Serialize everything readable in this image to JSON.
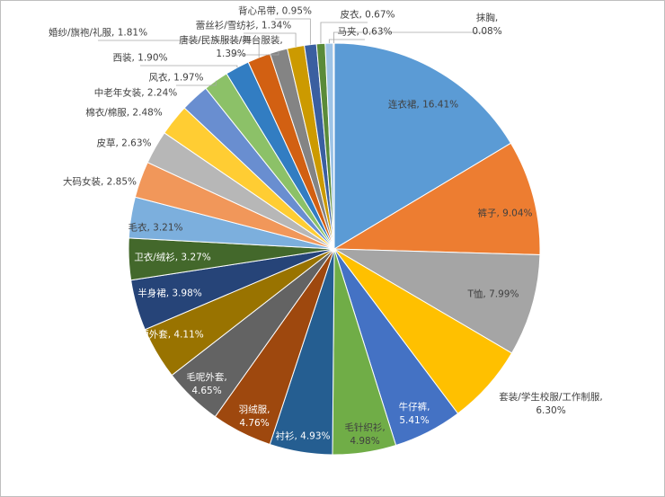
{
  "chart_data": {
    "type": "pie",
    "values": [
      16.41,
      9.04,
      7.99,
      6.3,
      5.41,
      4.98,
      4.93,
      4.76,
      4.65,
      4.11,
      3.98,
      3.27,
      3.21,
      2.85,
      2.63,
      2.48,
      2.24,
      1.97,
      1.9,
      1.81,
      1.39,
      1.34,
      0.95,
      0.67,
      0.63,
      0.08
    ],
    "value_labels": [
      "连衣裙, 16.41%",
      "裤子, 9.04%",
      "T恤, 7.99%",
      "套装/学生校服/工作制服,\n6.30%",
      "牛仔裤,\n5.41%",
      "毛针织衫,\n4.98%",
      "衬衫, 4.93%",
      "羽绒服,\n4.76%",
      "毛呢外套,\n4.65%",
      "短外套, 4.11%",
      "半身裙, 3.98%",
      "卫衣/绒衫, 3.27%",
      "毛衣, 3.21%",
      "大码女装, 2.85%",
      "皮草, 2.63%",
      "棉衣/棉服, 2.48%",
      "中老年女装, 2.24%",
      "风衣, 1.97%",
      "西装, 1.90%",
      "婚纱/旗袍/礼服, 1.81%",
      "唐装/民族服装/舞台服装,\n1.39%",
      "蕾丝衫/雪纺衫, 1.34%",
      "背心吊带, 0.95%",
      "皮衣, 0.67%",
      "马夹, 0.63%",
      "抹胸,\n0.08%"
    ],
    "colors": [
      "#5b9bd5",
      "#ed7d31",
      "#a5a5a5",
      "#ffc000",
      "#4472c4",
      "#70ad47",
      "#255e91",
      "#9e480e",
      "#636363",
      "#997300",
      "#264478",
      "#43682b",
      "#7cafdd",
      "#f1975a",
      "#b7b7b7",
      "#ffcd33",
      "#698ed0",
      "#8cc168",
      "#327dc2",
      "#d26012",
      "#848484",
      "#cc9a00",
      "#3a5fa0",
      "#5a8b39",
      "#9dc3e6",
      "#f4b183"
    ]
  }
}
